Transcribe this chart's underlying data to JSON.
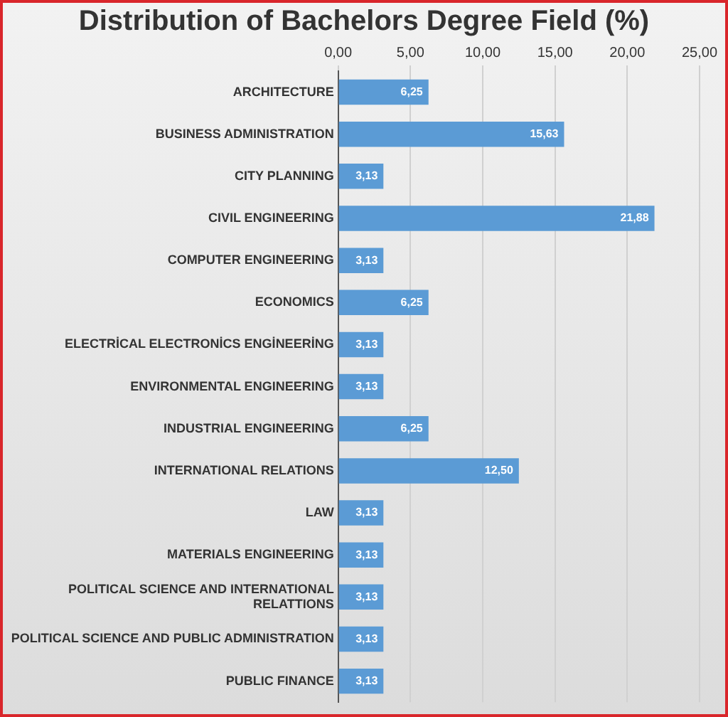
{
  "chart_data": {
    "type": "bar",
    "orientation": "horizontal",
    "title": "Distribution of Bachelors Degree Field (%)",
    "categories": [
      "ARCHITECTURE",
      "BUSINESS ADMINISTRATION",
      "CITY PLANNING",
      "CIVIL ENGINEERING",
      "COMPUTER ENGINEERING",
      "ECONOMICS",
      "ELECTRİCAL ELECTRONİCS ENGİNEERİNG",
      "ENVIRONMENTAL ENGINEERING",
      "INDUSTRIAL ENGINEERING",
      "INTERNATIONAL RELATIONS",
      "LAW",
      "MATERIALS ENGINEERING",
      "POLITICAL SCIENCE AND INTERNATIONAL RELATTIONS",
      "POLITICAL SCIENCE AND PUBLIC ADMINISTRATION",
      "PUBLIC FINANCE"
    ],
    "values": [
      6.25,
      15.63,
      3.13,
      21.88,
      3.13,
      6.25,
      3.13,
      3.13,
      6.25,
      12.5,
      3.13,
      3.13,
      3.13,
      3.13,
      3.13
    ],
    "value_labels": [
      "6,25",
      "15,63",
      "3,13",
      "21,88",
      "3,13",
      "6,25",
      "3,13",
      "3,13",
      "6,25",
      "12,50",
      "3,13",
      "3,13",
      "3,13",
      "3,13",
      "3,13"
    ],
    "color": "#5b9bd5",
    "xlim": [
      0,
      25
    ],
    "xticks": [
      {
        "value": 0,
        "label": "0,00"
      },
      {
        "value": 5,
        "label": "5,00"
      },
      {
        "value": 10,
        "label": "10,00"
      },
      {
        "value": 15,
        "label": "15,00"
      },
      {
        "value": 20,
        "label": "20,00"
      },
      {
        "value": 25,
        "label": "25,00"
      }
    ],
    "grid": "x",
    "legend": false
  }
}
